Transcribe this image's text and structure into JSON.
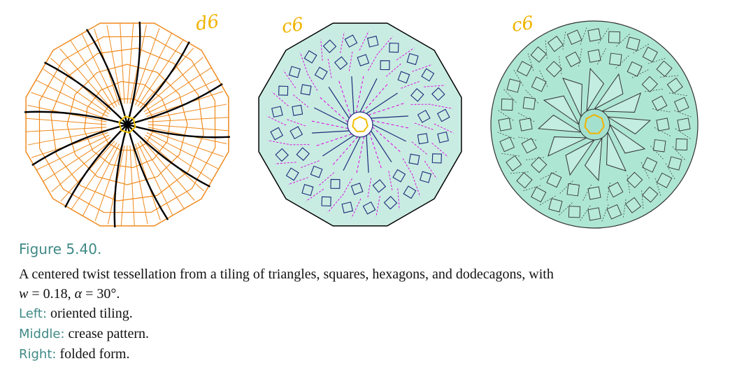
{
  "figure": {
    "panels": [
      {
        "symmetry_label": "d6",
        "fill": "#ffffff",
        "line_color": "#f08a1c",
        "accent_color": "#000000"
      },
      {
        "symmetry_label": "c6",
        "fill": "#c8ece2",
        "line_color": "#1d2b7a",
        "accent_color": "#e000e0"
      },
      {
        "symmetry_label": "c6",
        "fill": "#aee6d4",
        "line_color": "#333333",
        "accent_color": "#f0b400"
      }
    ]
  },
  "caption": {
    "title": "Figure 5.40.",
    "text_line1": "A centered twist tessellation from a tiling of triangles, squares, hexagons, and dodecagons, with",
    "w_symbol": "w",
    "w_value": " = 0.18, ",
    "alpha_symbol": "α",
    "alpha_value": " = 30°.",
    "items": [
      {
        "label": "Left:",
        "text": " oriented tiling."
      },
      {
        "label": "Middle:",
        "text": " crease pattern."
      },
      {
        "label": "Right:",
        "text": " folded form."
      }
    ]
  }
}
